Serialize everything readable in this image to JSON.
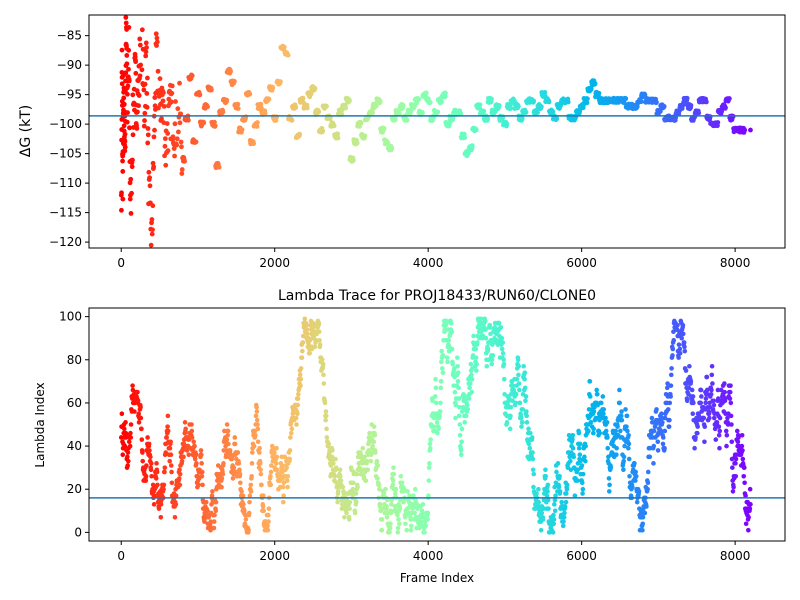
{
  "chart_data": [
    {
      "type": "scatter",
      "title": "",
      "xlabel": "",
      "ylabel": "ΔG (kT)",
      "xlim": [
        -420,
        8650
      ],
      "ylim": [
        -121,
        -81.5
      ],
      "xticks": [
        0,
        2000,
        4000,
        6000,
        8000
      ],
      "yticks": [
        -85,
        -90,
        -95,
        -100,
        -105,
        -110,
        -115,
        -120
      ],
      "hline": -98.6,
      "hline_color": "#1f77b4",
      "colormap": "rainbow (reversed over frame index: red at start, violet at end)",
      "series": [
        {
          "points_x": [
            0,
            10,
            20,
            30,
            40,
            50,
            60,
            70,
            80,
            100,
            120,
            150,
            180,
            200,
            230,
            260,
            300,
            330,
            360,
            400,
            430,
            460,
            500,
            540,
            580,
            620,
            660,
            700,
            760,
            800,
            850,
            900,
            950,
            1000,
            1050,
            1100,
            1150,
            1200,
            1250,
            1300,
            1350,
            1400,
            1450,
            1500,
            1550,
            1600,
            1650,
            1700,
            1750,
            1800,
            1850,
            1900,
            1950,
            2000,
            2050,
            2100,
            2150,
            2200,
            2250,
            2300,
            2350,
            2400,
            2450,
            2500,
            2550,
            2600,
            2650,
            2700,
            2750,
            2800,
            2850,
            2900,
            2950,
            3000,
            3050,
            3100,
            3150,
            3200,
            3250,
            3300,
            3350,
            3400,
            3450,
            3500,
            3550,
            3600,
            3650,
            3700,
            3750,
            3800,
            3850,
            3900,
            3950,
            4000,
            4050,
            4100,
            4150,
            4200,
            4250,
            4300,
            4350,
            4400,
            4450,
            4500,
            4550,
            4600,
            4650,
            4700,
            4750,
            4800,
            4850,
            4900,
            4950,
            5000,
            5050,
            5100,
            5150,
            5200,
            5250,
            5300,
            5350,
            5400,
            5450,
            5500,
            5550,
            5600,
            5650,
            5700,
            5750,
            5800,
            5850,
            5900,
            5950,
            6000,
            6050,
            6100,
            6150,
            6200,
            6250,
            6300,
            6350,
            6400,
            6450,
            6500,
            6550,
            6600,
            6650,
            6700,
            6750,
            6800,
            6850,
            6900,
            6950,
            7000,
            7050,
            7100,
            7150,
            7200,
            7250,
            7300,
            7350,
            7400,
            7450,
            7500,
            7550,
            7600,
            7650,
            7700,
            7750,
            7800,
            7850,
            7900,
            7950,
            8000,
            8050,
            8100,
            8150,
            8200
          ],
          "points_y": [
            -120,
            -90,
            -110,
            -96,
            -100,
            -104,
            -86,
            -83,
            -99,
            -88,
            -115,
            -100,
            -92,
            -96,
            -94,
            -82,
            -98,
            -87,
            -112,
            -120,
            -101,
            -88,
            -97,
            -95,
            -104,
            -99,
            -97,
            -101,
            -98,
            -106,
            -99,
            -92,
            -103,
            -95,
            -100,
            -97,
            -94,
            -100,
            -107,
            -98,
            -96,
            -91,
            -93,
            -97,
            -101,
            -99,
            -95,
            -103,
            -100,
            -97,
            -98,
            -96,
            -94,
            -99,
            -93,
            -87,
            -88,
            -99,
            -97,
            -102,
            -96,
            -97,
            -95,
            -94,
            -98,
            -101,
            -97,
            -99,
            -100,
            -102,
            -98,
            -97,
            -96,
            -106,
            -103,
            -100,
            -102,
            -99,
            -98,
            -97,
            -96,
            -101,
            -103,
            -104,
            -99,
            -98,
            -97,
            -99,
            -98,
            -97,
            -96,
            -98,
            -95,
            -96,
            -99,
            -98,
            -96,
            -95,
            -100,
            -99,
            -98,
            -98,
            -102,
            -105,
            -104,
            -101,
            -97,
            -98,
            -99,
            -96,
            -98,
            -97,
            -99,
            -100,
            -97,
            -96,
            -97,
            -99,
            -98,
            -96,
            -96,
            -98,
            -97,
            -95,
            -96,
            -98,
            -99,
            -97,
            -96,
            -96,
            -99,
            -99,
            -98,
            -97,
            -96,
            -94,
            -93,
            -95,
            -96,
            -96,
            -96,
            -96,
            -96,
            -96,
            -96,
            -97,
            -97,
            -97,
            -96,
            -95,
            -96,
            -96,
            -96,
            -98,
            -97,
            -99,
            -99,
            -99,
            -98,
            -97,
            -96,
            -97,
            -99,
            -98,
            -96,
            -96,
            -99,
            -100,
            -100,
            -98,
            -97,
            -96,
            -99,
            -101,
            -101,
            -101
          ]
        }
      ]
    },
    {
      "type": "scatter",
      "title": "Lambda Trace for PROJ18433/RUN60/CLONE0",
      "xlabel": "Frame Index",
      "ylabel": "Lambda Index",
      "xlim": [
        -420,
        8650
      ],
      "ylim": [
        -4,
        104
      ],
      "xticks": [
        0,
        2000,
        4000,
        6000,
        8000
      ],
      "yticks": [
        0,
        20,
        40,
        60,
        80,
        100
      ],
      "hline": 16,
      "hline_color": "#1f77b4",
      "colormap": "rainbow (reversed over frame index: red at start, violet at end)",
      "frame_count": 8200,
      "lambda_max": 99
    }
  ]
}
